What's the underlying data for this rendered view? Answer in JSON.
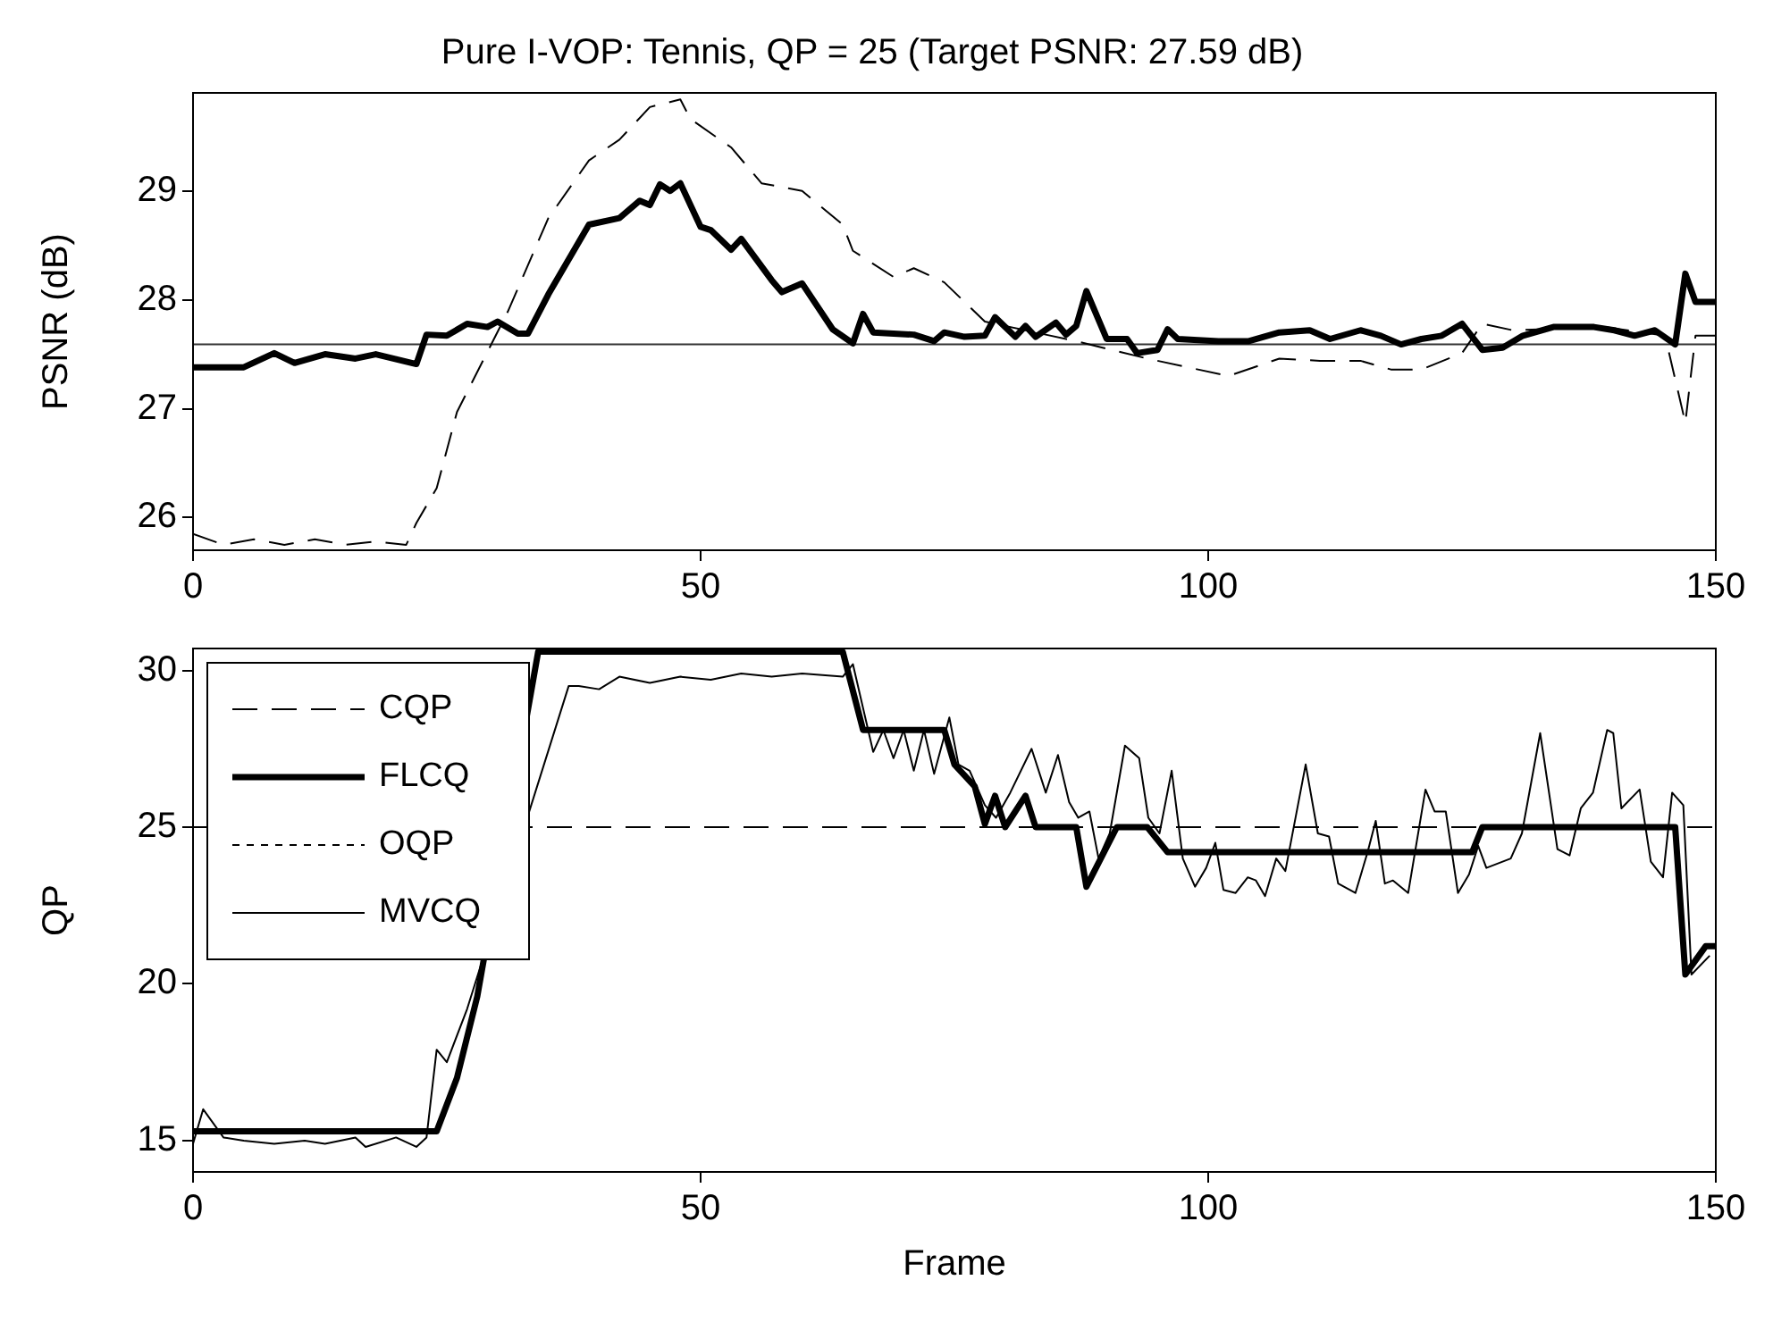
{
  "chart_data": [
    {
      "type": "line",
      "title": "Pure I-VOP: Tennis, QP = 25 (Target PSNR: 27.59 dB)",
      "ylabel": "PSNR (dB)",
      "xlim": [
        0,
        150
      ],
      "xticks": [
        0,
        50,
        100,
        150
      ],
      "ylim": [
        25.7,
        29.9
      ],
      "yticks": [
        26,
        27,
        28,
        29
      ],
      "grid": false,
      "legend": false,
      "ref_lines": [
        {
          "axis": "y",
          "value": 27.59,
          "label": null
        }
      ],
      "series": [
        {
          "color": "#000000",
          "line_style": "dashed",
          "x": [
            0,
            3,
            6,
            9,
            12,
            15,
            18,
            21,
            22,
            24,
            26,
            31,
            35,
            39,
            42,
            45,
            48,
            49,
            53,
            56,
            60,
            64,
            65,
            69,
            71,
            74,
            78,
            87,
            94,
            98,
            102,
            107,
            111,
            115,
            118,
            121,
            125,
            127,
            130,
            139,
            145,
            147,
            148,
            150
          ],
          "values": [
            25.85,
            25.75,
            25.8,
            25.75,
            25.8,
            25.75,
            25.78,
            25.75,
            25.95,
            26.27,
            26.97,
            27.89,
            28.75,
            29.28,
            29.47,
            29.77,
            29.84,
            29.66,
            29.4,
            29.07,
            29.0,
            28.69,
            28.45,
            28.21,
            28.29,
            28.16,
            27.8,
            27.62,
            27.46,
            27.38,
            27.3,
            27.46,
            27.44,
            27.44,
            27.36,
            27.36,
            27.51,
            27.78,
            27.72,
            27.75,
            27.67,
            26.87,
            27.67,
            27.67
          ]
        },
        {
          "color": "#000000",
          "line_style": "solid",
          "x": [
            0,
            5,
            8,
            10,
            13,
            16,
            18,
            22,
            23,
            25,
            27,
            29,
            30,
            32,
            33,
            35,
            39,
            42,
            44,
            45,
            46,
            47,
            48,
            50,
            51,
            53,
            54,
            57,
            58,
            60,
            63,
            65,
            66,
            67,
            71,
            73,
            74,
            76,
            78,
            79,
            81,
            82,
            83,
            85,
            86,
            87,
            88,
            90,
            92,
            93,
            95,
            96,
            97,
            101,
            104,
            107,
            110,
            112,
            115,
            117,
            119,
            121,
            123,
            125,
            127,
            129,
            131,
            134,
            138,
            140,
            142,
            144,
            146,
            147,
            148,
            150
          ],
          "values": [
            27.38,
            27.38,
            27.51,
            27.42,
            27.5,
            27.46,
            27.5,
            27.41,
            27.68,
            27.67,
            27.78,
            27.75,
            27.8,
            27.69,
            27.69,
            28.05,
            28.69,
            28.75,
            28.91,
            28.87,
            29.06,
            29.0,
            29.07,
            28.67,
            28.64,
            28.46,
            28.56,
            28.18,
            28.07,
            28.15,
            27.73,
            27.6,
            27.87,
            27.7,
            27.68,
            27.62,
            27.7,
            27.66,
            27.67,
            27.84,
            27.66,
            27.76,
            27.66,
            27.79,
            27.68,
            27.76,
            28.08,
            27.64,
            27.64,
            27.51,
            27.54,
            27.73,
            27.64,
            27.62,
            27.62,
            27.7,
            27.72,
            27.64,
            27.72,
            27.67,
            27.59,
            27.64,
            27.67,
            27.78,
            27.54,
            27.56,
            27.67,
            27.75,
            27.75,
            27.72,
            27.67,
            27.72,
            27.59,
            28.24,
            27.98,
            27.98
          ]
        }
      ]
    },
    {
      "type": "line",
      "xlabel": "Frame",
      "ylabel": "QP",
      "xlim": [
        0,
        150
      ],
      "xticks": [
        0,
        50,
        100,
        150
      ],
      "ylim": [
        14,
        30.7
      ],
      "yticks": [
        15,
        20,
        25,
        30
      ],
      "grid": false,
      "legend": "top left",
      "series": [
        {
          "name": "CQP",
          "color": "#000000",
          "line_style": "dashed",
          "x": [
            0,
            150
          ],
          "values": [
            25,
            25
          ]
        },
        {
          "name": "FLCQ",
          "color": "#000000",
          "line_style": "solid",
          "x": [
            0,
            24,
            26,
            28,
            34,
            64,
            66,
            74,
            75,
            77,
            78,
            79,
            80,
            82,
            83,
            87,
            88,
            91,
            94,
            96,
            126,
            127,
            146,
            147,
            149,
            150
          ],
          "values": [
            15.3,
            15.3,
            17,
            19.6,
            30.6,
            30.6,
            28.1,
            28.1,
            27,
            26.3,
            25.1,
            26,
            25,
            26,
            25,
            25,
            23.1,
            25,
            25,
            24.2,
            24.2,
            25,
            25,
            20.3,
            21.2,
            21.2
          ]
        },
        {
          "name": "OQP",
          "color": "#000000",
          "line_style": "dotted"
        },
        {
          "name": "MVCQ",
          "color": "#000000",
          "line_style": "solid",
          "x": [
            0,
            1,
            3,
            5,
            8,
            11,
            13,
            16,
            17,
            20,
            22,
            23,
            24,
            25,
            27,
            37,
            38,
            40,
            42,
            45,
            48,
            51,
            54,
            57,
            60,
            64,
            65,
            67,
            68,
            69,
            70,
            71,
            72,
            73,
            74.5,
            75.4,
            76.5,
            78,
            79.1,
            80.5,
            82.6,
            84,
            85.2,
            86.3,
            87.2,
            88.3,
            89.2,
            90.3,
            91.8,
            93.2,
            94.1,
            95.2,
            96.4,
            97.5,
            98.7,
            99.8,
            100.7,
            101.5,
            102.7,
            103.9,
            104.7,
            105.6,
            106.7,
            107.6,
            109.6,
            110.8,
            111.9,
            112.8,
            114.5,
            115.7,
            116.5,
            117.4,
            118.2,
            119.7,
            121.4,
            122.3,
            123.4,
            124.6,
            125.7,
            126.6,
            127.4,
            129.8,
            130.9,
            132.7,
            134.4,
            135.6,
            136.7,
            137.9,
            139.3,
            139.9,
            140.7,
            142.5,
            143.6,
            144.8,
            145.7,
            146.8,
            147.6,
            149.4
          ],
          "values": [
            14.9,
            16.0,
            15.1,
            15.0,
            14.9,
            15.0,
            14.9,
            15.1,
            14.8,
            15.1,
            14.8,
            15.1,
            17.9,
            17.5,
            19.2,
            29.5,
            29.5,
            29.4,
            29.8,
            29.6,
            29.8,
            29.7,
            29.9,
            29.8,
            29.9,
            29.8,
            30.2,
            27.4,
            28.1,
            27.2,
            28.1,
            26.8,
            28.1,
            26.7,
            28.5,
            27.0,
            26.8,
            25.7,
            25.3,
            26.1,
            27.5,
            26.1,
            27.3,
            25.8,
            25.3,
            25.5,
            24.0,
            24.8,
            27.6,
            27.2,
            25.3,
            24.8,
            26.8,
            24.0,
            23.1,
            23.7,
            24.5,
            23.0,
            22.9,
            23.4,
            23.3,
            22.8,
            24.0,
            23.6,
            27.0,
            24.8,
            24.7,
            23.2,
            22.9,
            24.2,
            25.2,
            23.2,
            23.3,
            22.9,
            26.2,
            25.5,
            25.5,
            22.9,
            23.5,
            24.4,
            23.7,
            24.0,
            24.8,
            28.0,
            24.3,
            24.1,
            25.6,
            26.1,
            28.1,
            28.0,
            25.6,
            26.2,
            23.9,
            23.4,
            26.1,
            25.7,
            20.3,
            20.9
          ]
        }
      ]
    }
  ]
}
